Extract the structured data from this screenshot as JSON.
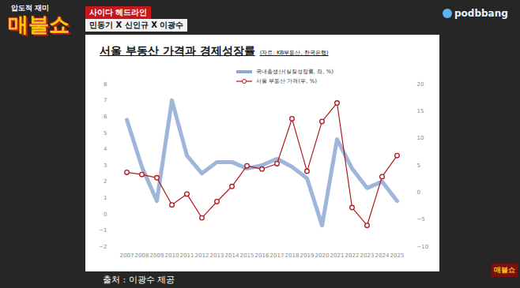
{
  "chart_data": {
    "type": "line",
    "title": "서울 부동산 가격과 경제성장률",
    "subtitle": "(자료: KB부동산, 한국은행)",
    "annotations": [
      "압도적 재미",
      "매불쇼",
      "사이다 헤드라인",
      "민동기 X 신인규 X 이광수",
      "podbbang",
      "출처 : 이광수 제공",
      "매불쇼"
    ],
    "categories": [
      "2007",
      "2008",
      "2009",
      "2010",
      "2011",
      "2012",
      "2013",
      "2014",
      "2015",
      "2016",
      "2017",
      "2018",
      "2019",
      "2020",
      "2021",
      "2022",
      "2023",
      "2024",
      "2025"
    ],
    "series": [
      {
        "name": "국내총생산(실질성장률, 좌, %)",
        "color": "#8ea8d4",
        "values": [
          5.8,
          2.9,
          0.8,
          7.0,
          3.6,
          2.5,
          3.2,
          3.2,
          2.8,
          3.0,
          3.4,
          2.9,
          2.2,
          -0.7,
          4.6,
          2.8,
          1.6,
          2.0,
          0.8
        ]
      },
      {
        "name": "서울 부동산 가격(우, %)",
        "color": "#b0171f",
        "axis": "y2",
        "marker": "circle",
        "values": [
          3.7,
          3.3,
          2.7,
          -2.3,
          -0.3,
          -4.7,
          -1.7,
          1.1,
          4.9,
          4.3,
          5.3,
          13.6,
          3.9,
          13.1,
          16.5,
          -2.8,
          -6.1,
          2.9,
          6.8
        ]
      }
    ],
    "ylim": [
      -2,
      8
    ],
    "yticks": [
      -2,
      -1,
      0,
      1,
      2,
      3,
      4,
      5,
      6,
      7,
      8
    ],
    "y2lim": [
      -10,
      20
    ],
    "y2ticks": [
      -10,
      -5,
      0,
      5,
      10,
      15,
      20
    ],
    "grid": false,
    "legend": "top-left"
  }
}
